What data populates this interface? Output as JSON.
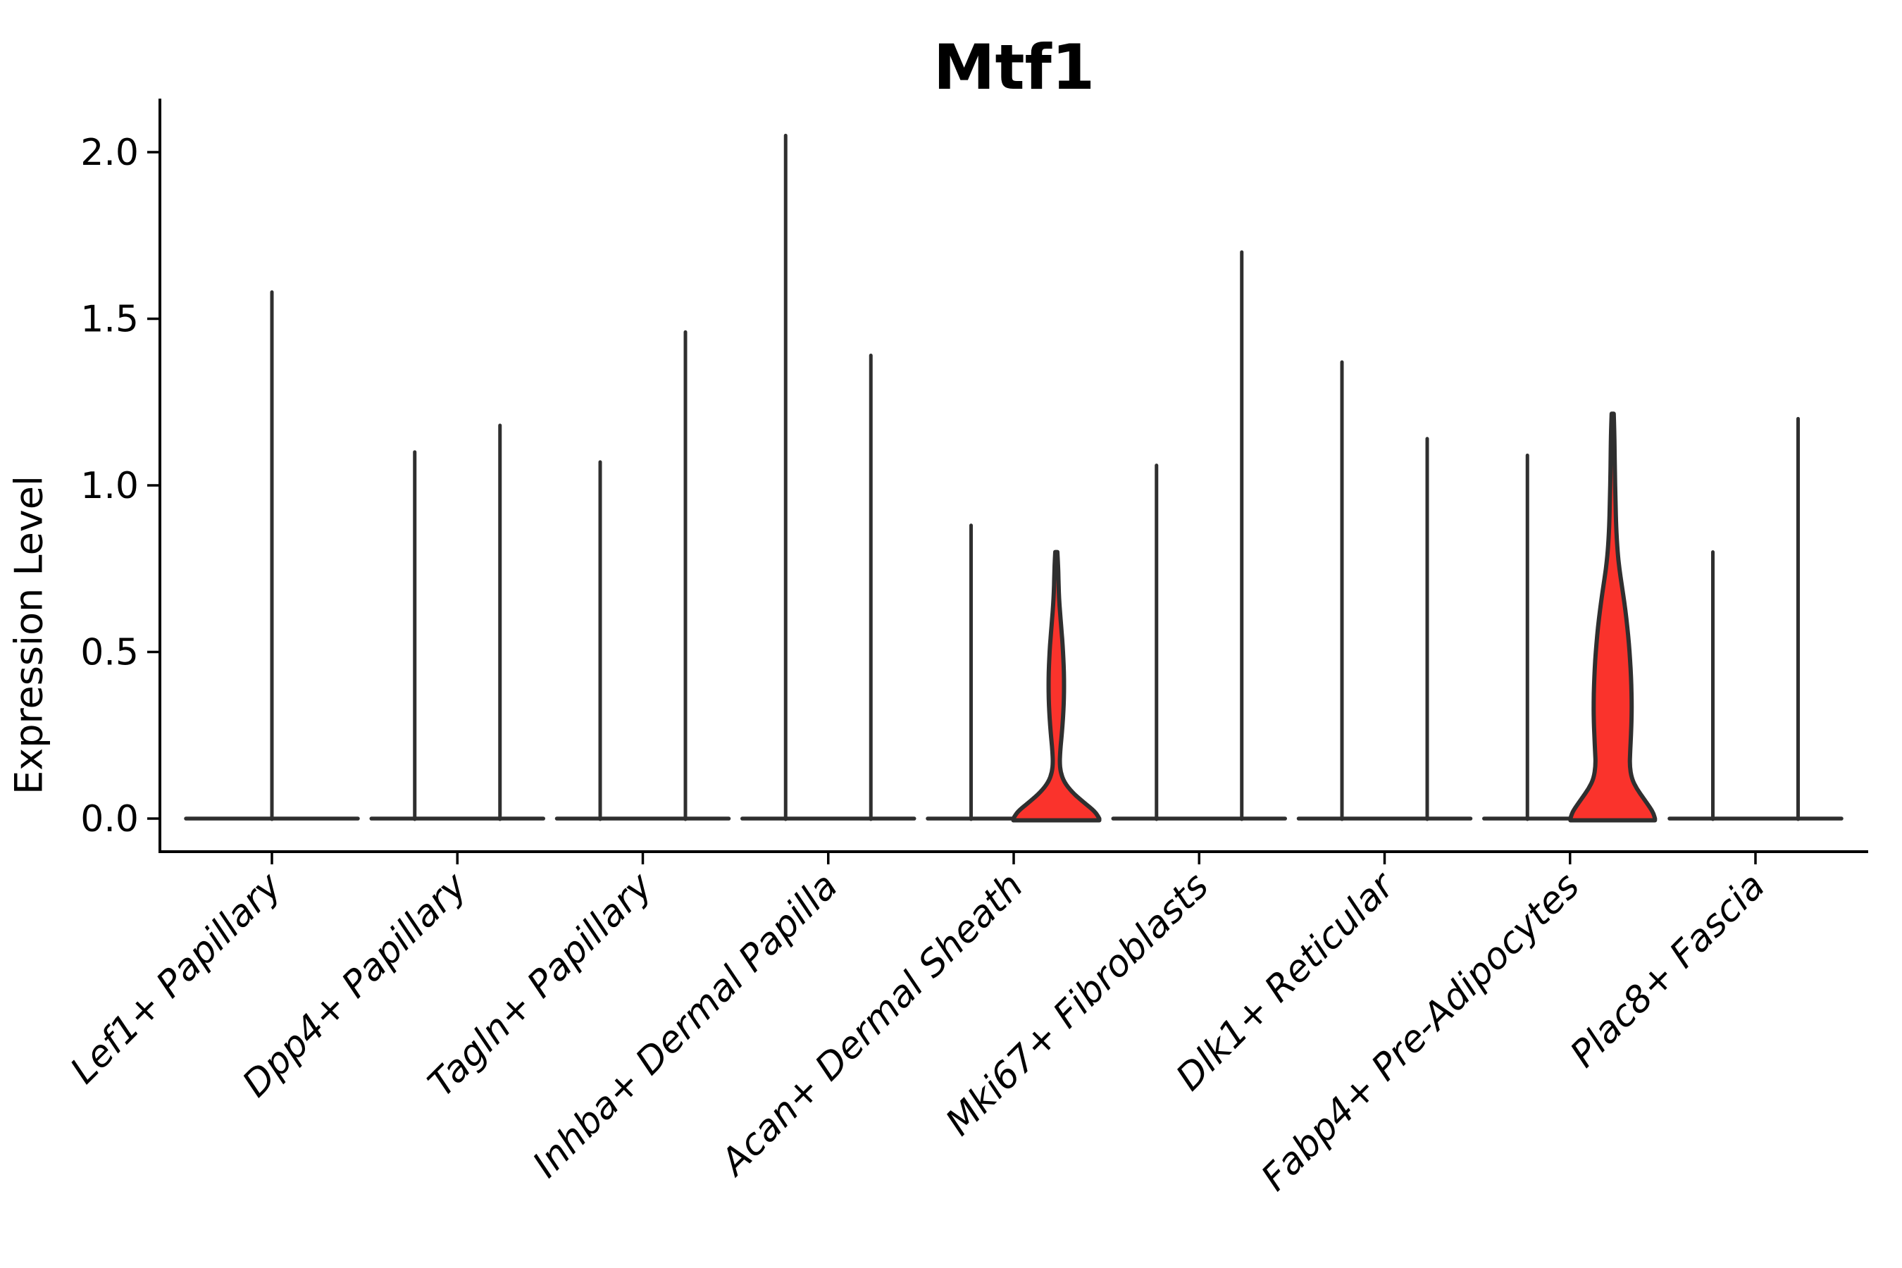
{
  "chart_data": {
    "type": "violin",
    "title": "Mtf1",
    "ylabel": "Expression Level",
    "xlabel": "",
    "ytick_labels": [
      "0.0",
      "0.5",
      "1.0",
      "1.5",
      "2.0"
    ],
    "ytick_values": [
      0.0,
      0.5,
      1.0,
      1.5,
      2.0
    ],
    "ylim": [
      0.0,
      2.16
    ],
    "grid": false,
    "legend": "none",
    "categories": [
      "Lef1+ Papillary",
      "Dpp4+ Papillary",
      "Tagln+ Papillary",
      "Inhba+ Dermal Papilla",
      "Acan+ Dermal Sheath",
      "Mki67+ Fibroblasts",
      "Dlk1+ Reticular",
      "Fabp4+ Pre-Adipocytes",
      "Plac8+ Fascia"
    ],
    "description": "Violin plot of Mtf1 expression; each category shows up to two side-by-side violins whose density is concentrated at 0 (flat base) with a thin spike up to the maximum expressing cell; two violins have visible red-filled density bulges.",
    "violins": [
      {
        "category_index": 0,
        "position": "center",
        "max_expression": 1.58,
        "style": "spike",
        "fill": "none"
      },
      {
        "category_index": 1,
        "position": "left",
        "max_expression": 1.1,
        "style": "spike",
        "fill": "none"
      },
      {
        "category_index": 1,
        "position": "right",
        "max_expression": 1.18,
        "style": "spike",
        "fill": "none"
      },
      {
        "category_index": 2,
        "position": "left",
        "max_expression": 1.07,
        "style": "spike",
        "fill": "none"
      },
      {
        "category_index": 2,
        "position": "right",
        "max_expression": 1.46,
        "style": "spike",
        "fill": "none"
      },
      {
        "category_index": 3,
        "position": "left",
        "max_expression": 2.05,
        "style": "spike",
        "fill": "none"
      },
      {
        "category_index": 3,
        "position": "right",
        "max_expression": 1.39,
        "style": "spike",
        "fill": "none"
      },
      {
        "category_index": 4,
        "position": "left",
        "max_expression": 0.88,
        "style": "spike",
        "fill": "none"
      },
      {
        "category_index": 4,
        "position": "right",
        "max_expression": 0.8,
        "style": "bulged",
        "fill": "highlight",
        "profile": [
          [
            0.8,
            1.5
          ],
          [
            0.76,
            2.5
          ],
          [
            0.72,
            3
          ],
          [
            0.68,
            3.5
          ],
          [
            0.64,
            4.5
          ],
          [
            0.6,
            6
          ],
          [
            0.56,
            7.5
          ],
          [
            0.52,
            9
          ],
          [
            0.48,
            10
          ],
          [
            0.44,
            10.8
          ],
          [
            0.4,
            11
          ],
          [
            0.36,
            10.8
          ],
          [
            0.32,
            10
          ],
          [
            0.28,
            8.8
          ],
          [
            0.24,
            7.2
          ],
          [
            0.2,
            5.5
          ],
          [
            0.17,
            4.8
          ],
          [
            0.14,
            6
          ],
          [
            0.11,
            11
          ],
          [
            0.08,
            22
          ],
          [
            0.05,
            38
          ],
          [
            0.03,
            50
          ],
          [
            0.015,
            57
          ],
          [
            0.0,
            61
          ]
        ]
      },
      {
        "category_index": 5,
        "position": "left",
        "max_expression": 1.06,
        "style": "spike",
        "fill": "none"
      },
      {
        "category_index": 5,
        "position": "right",
        "max_expression": 1.7,
        "style": "spike",
        "fill": "none"
      },
      {
        "category_index": 6,
        "position": "left",
        "max_expression": 1.37,
        "style": "spike",
        "fill": "none"
      },
      {
        "category_index": 6,
        "position": "right",
        "max_expression": 1.14,
        "style": "spike",
        "fill": "none"
      },
      {
        "category_index": 7,
        "position": "left",
        "max_expression": 1.09,
        "style": "spike",
        "fill": "none"
      },
      {
        "category_index": 7,
        "position": "right",
        "max_expression": 1.22,
        "style": "bulged",
        "fill": "highlight",
        "profile": [
          [
            1.215,
            1.5
          ],
          [
            1.15,
            2.5
          ],
          [
            1.05,
            3
          ],
          [
            0.95,
            4
          ],
          [
            0.87,
            5
          ],
          [
            0.8,
            7
          ],
          [
            0.75,
            9.5
          ],
          [
            0.7,
            13
          ],
          [
            0.65,
            16.5
          ],
          [
            0.6,
            19.5
          ],
          [
            0.55,
            22
          ],
          [
            0.5,
            24
          ],
          [
            0.45,
            25.5
          ],
          [
            0.4,
            26.5
          ],
          [
            0.35,
            27
          ],
          [
            0.3,
            26.8
          ],
          [
            0.25,
            26
          ],
          [
            0.2,
            24.8
          ],
          [
            0.16,
            24.2
          ],
          [
            0.12,
            27
          ],
          [
            0.09,
            34
          ],
          [
            0.06,
            44
          ],
          [
            0.03,
            54
          ],
          [
            0.015,
            58
          ],
          [
            0.0,
            60
          ]
        ]
      },
      {
        "category_index": 8,
        "position": "left",
        "max_expression": 0.8,
        "style": "spike",
        "fill": "none"
      },
      {
        "category_index": 8,
        "position": "right",
        "max_expression": 1.2,
        "style": "spike",
        "fill": "none"
      }
    ],
    "colors": {
      "highlight_fill": "#FA332C",
      "violin_outline": "#2F2F2F",
      "axis": "#000000",
      "text": "#000000",
      "background": "#FFFFFF"
    }
  }
}
